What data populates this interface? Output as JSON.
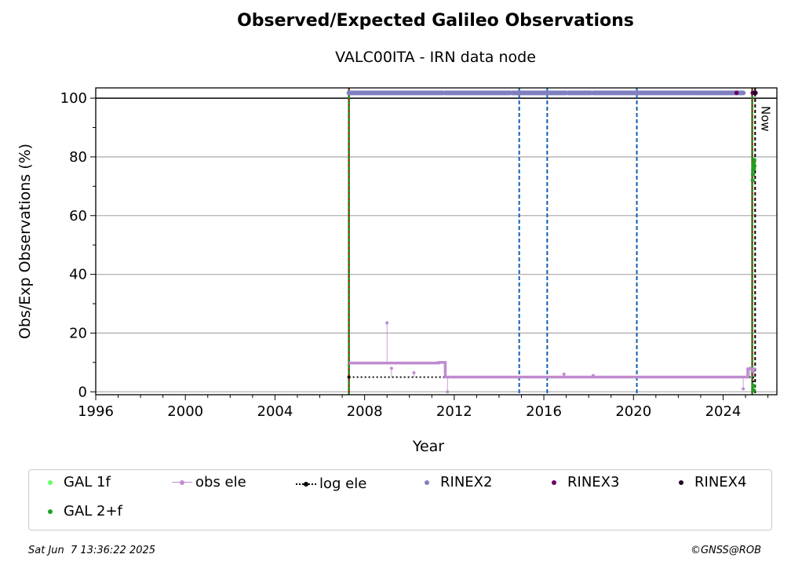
{
  "title": "Observed/Expected Galileo Observations",
  "subtitle": "VALC00ITA - IRN data node",
  "footer": {
    "timestamp": "Sat Jun  7 13:36:22 2025",
    "copyright": "©GNSS@ROB"
  },
  "legend": [
    {
      "label": "GAL 1f",
      "color": "#66ff66",
      "style": "dot"
    },
    {
      "label": "obs ele",
      "color": "#c08bd0",
      "style": "line-dot"
    },
    {
      "label": "log ele",
      "color": "#000000",
      "style": "dotted-line"
    },
    {
      "label": "RINEX2",
      "color": "#8080c0",
      "style": "dot"
    },
    {
      "label": "RINEX3",
      "color": "#660066",
      "style": "dot"
    },
    {
      "label": "RINEX4",
      "color": "#220022",
      "style": "dot"
    },
    {
      "label": "GAL 2+f",
      "color": "#22a022",
      "style": "dot"
    }
  ],
  "chart_data": {
    "type": "scatter",
    "xlabel": "Year",
    "ylabel": "Obs/Exp Observations (%)",
    "xlim": [
      1996,
      2026.4
    ],
    "ylim": [
      -1,
      103.5
    ],
    "xticks": [
      1996,
      2000,
      2004,
      2008,
      2012,
      2016,
      2020,
      2024
    ],
    "yticks": [
      0,
      20,
      40,
      60,
      80,
      100
    ],
    "grid": "y",
    "now_label": "Now",
    "now_x": 2025.43,
    "reference_line_y": 100,
    "vertical_lines": [
      {
        "x": 2007.3,
        "kind": "green-red-dashed"
      },
      {
        "x": 2014.9,
        "kind": "blue-dashed"
      },
      {
        "x": 2016.15,
        "kind": "blue-dashed"
      },
      {
        "x": 2020.15,
        "kind": "blue-dashed"
      },
      {
        "x": 2025.3,
        "kind": "green-red-dashed"
      }
    ],
    "series": [
      {
        "name": "RINEX2",
        "color": "#8080c0",
        "y": 101.8,
        "segments": [
          [
            2007.3,
            2011.5
          ],
          [
            2011.6,
            2014.5
          ],
          [
            2014.6,
            2017.0
          ],
          [
            2017.1,
            2018.1
          ],
          [
            2018.2,
            2024.9
          ]
        ]
      },
      {
        "name": "RINEX3",
        "color": "#660066",
        "points": [
          [
            2024.6,
            101.8
          ],
          [
            2025.32,
            101.8
          ],
          [
            2025.4,
            101.8
          ],
          [
            2025.45,
            101.8
          ]
        ]
      },
      {
        "name": "RINEX4",
        "color": "#220022",
        "points": [
          [
            2025.42,
            101.8
          ]
        ]
      },
      {
        "name": "obs ele",
        "color": "#c08bd0",
        "steps": [
          [
            2007.3,
            9.8
          ],
          [
            2011.3,
            9.8
          ],
          [
            2011.3,
            10.0
          ],
          [
            2011.6,
            10.0
          ],
          [
            2011.6,
            5.0
          ],
          [
            2025.1,
            5.0
          ],
          [
            2025.1,
            7.8
          ],
          [
            2025.45,
            7.8
          ]
        ],
        "outliers": [
          [
            2009.0,
            23.5
          ],
          [
            2009.2,
            8.0
          ],
          [
            2010.2,
            6.5
          ],
          [
            2011.7,
            0.0
          ],
          [
            2016.9,
            6.0
          ],
          [
            2018.2,
            5.5
          ],
          [
            2024.9,
            1.0
          ],
          [
            2025.2,
            8.0
          ],
          [
            2025.35,
            7.0
          ]
        ]
      },
      {
        "name": "log ele",
        "color": "#000000",
        "steps": [
          [
            2007.3,
            5.0
          ],
          [
            2025.35,
            5.0
          ],
          [
            2025.35,
            0.0
          ]
        ]
      },
      {
        "name": "GAL 2+f",
        "color": "#22a022",
        "points": [
          [
            2025.32,
            72.0
          ],
          [
            2025.33,
            74.0
          ],
          [
            2025.34,
            75.5
          ],
          [
            2025.35,
            76.5
          ],
          [
            2025.36,
            77.5
          ],
          [
            2025.37,
            78.0
          ],
          [
            2025.38,
            76.0
          ],
          [
            2025.39,
            79.0
          ],
          [
            2025.4,
            77.0
          ],
          [
            2025.36,
            2.0
          ],
          [
            2025.37,
            0.5
          ]
        ]
      },
      {
        "name": "GAL 1f",
        "color": "#66ff66",
        "points": []
      }
    ]
  }
}
